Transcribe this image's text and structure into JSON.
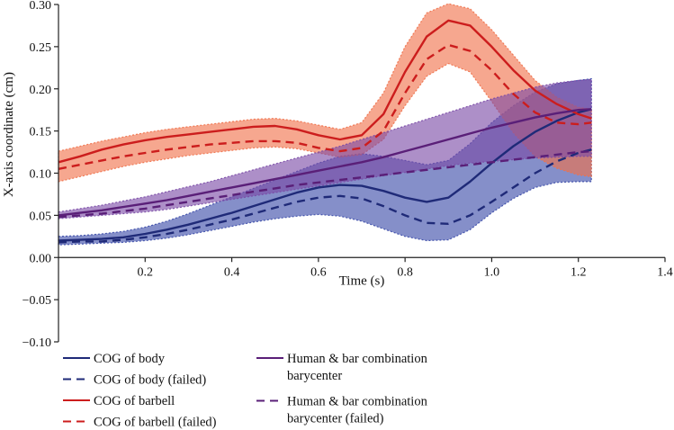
{
  "chart_data": {
    "type": "line",
    "xlabel": "Time (s)",
    "ylabel": "X-axis coordinate (cm)",
    "xlim": [
      0.0,
      1.4
    ],
    "ylim": [
      -0.1,
      0.3
    ],
    "xticks": [
      0.2,
      0.4,
      0.6,
      0.8,
      1.0,
      1.2,
      1.4
    ],
    "xtick_labels": [
      "0.2",
      "0.4",
      "0.6",
      "0.8",
      "1.0",
      "1.2",
      "1.4"
    ],
    "yticks": [
      0.3,
      0.25,
      0.2,
      0.15,
      0.1,
      0.05,
      0.0,
      -0.05,
      -0.1
    ],
    "ytick_labels": [
      "0.30",
      "0.25",
      "0.20",
      "0.15",
      "0.10",
      "0.05",
      "0.00",
      "−0.05",
      "−0.10"
    ],
    "grid": false,
    "legend_position": "bottom-left",
    "x": [
      0.0,
      0.05,
      0.1,
      0.15,
      0.2,
      0.25,
      0.3,
      0.35,
      0.4,
      0.45,
      0.5,
      0.55,
      0.6,
      0.65,
      0.7,
      0.75,
      0.8,
      0.85,
      0.9,
      0.95,
      1.0,
      1.05,
      1.1,
      1.15,
      1.2,
      1.23
    ],
    "series": [
      {
        "name": "COG of body",
        "color": "#1f2a78",
        "dash": "solid",
        "band_color": "#3a4aa8",
        "values": [
          0.02,
          0.021,
          0.022,
          0.024,
          0.028,
          0.033,
          0.039,
          0.046,
          0.053,
          0.061,
          0.069,
          0.077,
          0.083,
          0.086,
          0.085,
          0.079,
          0.071,
          0.066,
          0.071,
          0.09,
          0.112,
          0.132,
          0.149,
          0.162,
          0.172,
          0.176
        ],
        "band_lower": [
          0.015,
          0.016,
          0.017,
          0.018,
          0.02,
          0.023,
          0.027,
          0.032,
          0.037,
          0.042,
          0.046,
          0.049,
          0.051,
          0.049,
          0.043,
          0.034,
          0.025,
          0.02,
          0.021,
          0.033,
          0.053,
          0.07,
          0.083,
          0.089,
          0.09,
          0.09
        ],
        "band_upper": [
          0.025,
          0.026,
          0.028,
          0.031,
          0.036,
          0.043,
          0.052,
          0.062,
          0.072,
          0.082,
          0.092,
          0.102,
          0.112,
          0.12,
          0.123,
          0.12,
          0.115,
          0.11,
          0.115,
          0.135,
          0.16,
          0.18,
          0.196,
          0.206,
          0.21,
          0.212
        ]
      },
      {
        "name": "COG of body (failed)",
        "color": "#1f2a78",
        "dash": "dashed",
        "values": [
          0.018,
          0.019,
          0.019,
          0.021,
          0.024,
          0.028,
          0.033,
          0.039,
          0.045,
          0.052,
          0.059,
          0.066,
          0.071,
          0.073,
          0.07,
          0.061,
          0.05,
          0.041,
          0.04,
          0.05,
          0.066,
          0.083,
          0.1,
          0.114,
          0.124,
          0.128
        ]
      },
      {
        "name": "COG of barbell",
        "color": "#cc1d1d",
        "dash": "solid",
        "band_color": "#f0714a",
        "values": [
          0.113,
          0.12,
          0.128,
          0.134,
          0.139,
          0.143,
          0.146,
          0.149,
          0.152,
          0.155,
          0.156,
          0.152,
          0.145,
          0.14,
          0.145,
          0.17,
          0.22,
          0.262,
          0.281,
          0.275,
          0.25,
          0.222,
          0.198,
          0.182,
          0.17,
          0.165
        ],
        "band_lower": [
          0.09,
          0.096,
          0.102,
          0.108,
          0.113,
          0.117,
          0.121,
          0.124,
          0.127,
          0.13,
          0.131,
          0.129,
          0.124,
          0.119,
          0.122,
          0.14,
          0.18,
          0.215,
          0.23,
          0.22,
          0.185,
          0.148,
          0.12,
          0.106,
          0.098,
          0.096
        ],
        "band_upper": [
          0.126,
          0.132,
          0.138,
          0.143,
          0.148,
          0.152,
          0.155,
          0.158,
          0.161,
          0.164,
          0.165,
          0.162,
          0.157,
          0.152,
          0.16,
          0.195,
          0.25,
          0.29,
          0.301,
          0.295,
          0.27,
          0.24,
          0.21,
          0.19,
          0.178,
          0.176
        ]
      },
      {
        "name": "COG of barbell (failed)",
        "color": "#cc1d1d",
        "dash": "dashed",
        "values": [
          0.105,
          0.11,
          0.115,
          0.12,
          0.124,
          0.128,
          0.131,
          0.134,
          0.136,
          0.138,
          0.138,
          0.136,
          0.13,
          0.126,
          0.13,
          0.15,
          0.195,
          0.235,
          0.252,
          0.245,
          0.222,
          0.194,
          0.172,
          0.16,
          0.158,
          0.16
        ]
      },
      {
        "name": "Human & bar combination barycenter",
        "color": "#5a1f78",
        "dash": "solid",
        "band_color": "#7a4aa6",
        "values": [
          0.05,
          0.053,
          0.056,
          0.06,
          0.064,
          0.068,
          0.073,
          0.078,
          0.083,
          0.088,
          0.093,
          0.098,
          0.103,
          0.108,
          0.113,
          0.119,
          0.126,
          0.133,
          0.14,
          0.147,
          0.154,
          0.16,
          0.166,
          0.171,
          0.175,
          0.176
        ],
        "band_lower": [
          0.046,
          0.048,
          0.05,
          0.052,
          0.054,
          0.057,
          0.061,
          0.065,
          0.069,
          0.073,
          0.077,
          0.081,
          0.085,
          0.089,
          0.093,
          0.097,
          0.101,
          0.105,
          0.109,
          0.112,
          0.114,
          0.116,
          0.118,
          0.119,
          0.12,
          0.12
        ],
        "band_upper": [
          0.054,
          0.058,
          0.062,
          0.067,
          0.072,
          0.078,
          0.084,
          0.09,
          0.097,
          0.104,
          0.111,
          0.118,
          0.125,
          0.132,
          0.14,
          0.148,
          0.156,
          0.164,
          0.172,
          0.18,
          0.188,
          0.195,
          0.202,
          0.207,
          0.21,
          0.211
        ]
      },
      {
        "name": "Human & bar combination barycenter (failed)",
        "color": "#5a1f78",
        "dash": "dashed",
        "values": [
          0.048,
          0.05,
          0.052,
          0.055,
          0.058,
          0.062,
          0.066,
          0.07,
          0.074,
          0.078,
          0.082,
          0.086,
          0.089,
          0.092,
          0.095,
          0.098,
          0.101,
          0.104,
          0.107,
          0.11,
          0.113,
          0.116,
          0.119,
          0.122,
          0.125,
          0.126
        ]
      }
    ],
    "legend_columns": [
      [
        {
          "lines": [
            "COG of body"
          ],
          "color": "#1f2a78",
          "dash": "solid"
        },
        {
          "lines": [
            "COG of body (failed)"
          ],
          "color": "#1f2a78",
          "dash": "dashed"
        },
        {
          "lines": [
            "COG of barbell"
          ],
          "color": "#cc1d1d",
          "dash": "solid"
        },
        {
          "lines": [
            "COG of barbell (failed)"
          ],
          "color": "#cc1d1d",
          "dash": "dashed"
        }
      ],
      [
        {
          "lines": [
            "Human & bar combination",
            "barycenter"
          ],
          "color": "#5a1f78",
          "dash": "solid"
        },
        {
          "lines": [
            "Human & bar combination",
            "barycenter (failed)"
          ],
          "color": "#5a1f78",
          "dash": "dashed"
        }
      ]
    ]
  }
}
